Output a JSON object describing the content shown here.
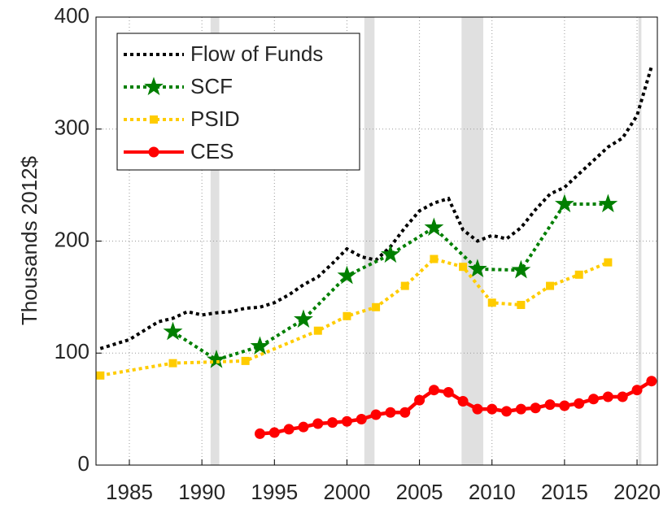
{
  "chart_data": {
    "type": "line",
    "ylabel": "Thousands 2012$",
    "xlim": [
      1982.7,
      2021.4
    ],
    "ylim": [
      0,
      400
    ],
    "xticks": [
      1985,
      1990,
      1995,
      2000,
      2005,
      2010,
      2015,
      2020
    ],
    "yticks": [
      0,
      100,
      200,
      300,
      400
    ],
    "grid": true,
    "legend": "upper left",
    "shading": [
      [
        1990.6,
        1991.2
      ],
      [
        2001.2,
        2001.9
      ],
      [
        2007.9,
        2009.4
      ],
      [
        2020.1,
        2020.3
      ]
    ],
    "series": [
      {
        "name": "Flow of Funds",
        "color": "#000000",
        "dashed": true,
        "marker": "none",
        "x": [
          1983,
          1984,
          1985,
          1986,
          1987,
          1988,
          1989,
          1990,
          1991,
          1992,
          1993,
          1994,
          1995,
          1996,
          1997,
          1998,
          1999,
          2000,
          2001,
          2002,
          2003,
          2004,
          2005,
          2006,
          2007,
          2008,
          2009,
          2010,
          2011,
          2012,
          2013,
          2014,
          2015,
          2016,
          2017,
          2018,
          2019,
          2020,
          2021
        ],
        "values": [
          104,
          108,
          112,
          120,
          128,
          131,
          137,
          134,
          136,
          137,
          140,
          141,
          145,
          152,
          161,
          168,
          180,
          193,
          186,
          183,
          195,
          212,
          227,
          234,
          238,
          210,
          200,
          205,
          202,
          212,
          228,
          242,
          248,
          260,
          272,
          284,
          292,
          312,
          356
        ]
      },
      {
        "name": "SCF",
        "color": "#007f00",
        "dashed": true,
        "marker": "star",
        "x": [
          1988,
          1991,
          1994,
          1997,
          2000,
          2003,
          2006,
          2009,
          2012,
          2015,
          2018
        ],
        "values": [
          119,
          94,
          106,
          130,
          169,
          188,
          212,
          175,
          174,
          233,
          233
        ]
      },
      {
        "name": "PSID",
        "color": "#ffcc00",
        "dashed": true,
        "marker": "square",
        "x": [
          1983,
          1988,
          1993,
          1998,
          2000,
          2002,
          2004,
          2006,
          2008,
          2010,
          2012,
          2014,
          2016,
          2018
        ],
        "values": [
          80,
          91,
          93,
          120,
          133,
          141,
          160,
          184,
          177,
          145,
          143,
          160,
          170,
          181
        ]
      },
      {
        "name": "CES",
        "color": "#ff0000",
        "dashed": false,
        "marker": "circle",
        "x": [
          1994,
          1995,
          1996,
          1997,
          1998,
          1999,
          2000,
          2001,
          2002,
          2003,
          2004,
          2005,
          2006,
          2007,
          2008,
          2009,
          2010,
          2011,
          2012,
          2013,
          2014,
          2015,
          2016,
          2017,
          2018,
          2019,
          2020,
          2021
        ],
        "values": [
          28,
          29,
          32,
          34,
          37,
          38,
          39,
          41,
          45,
          47,
          47,
          58,
          67,
          65,
          57,
          50,
          50,
          48,
          50,
          51,
          54,
          53,
          55,
          59,
          61,
          61,
          67,
          75
        ]
      }
    ]
  }
}
